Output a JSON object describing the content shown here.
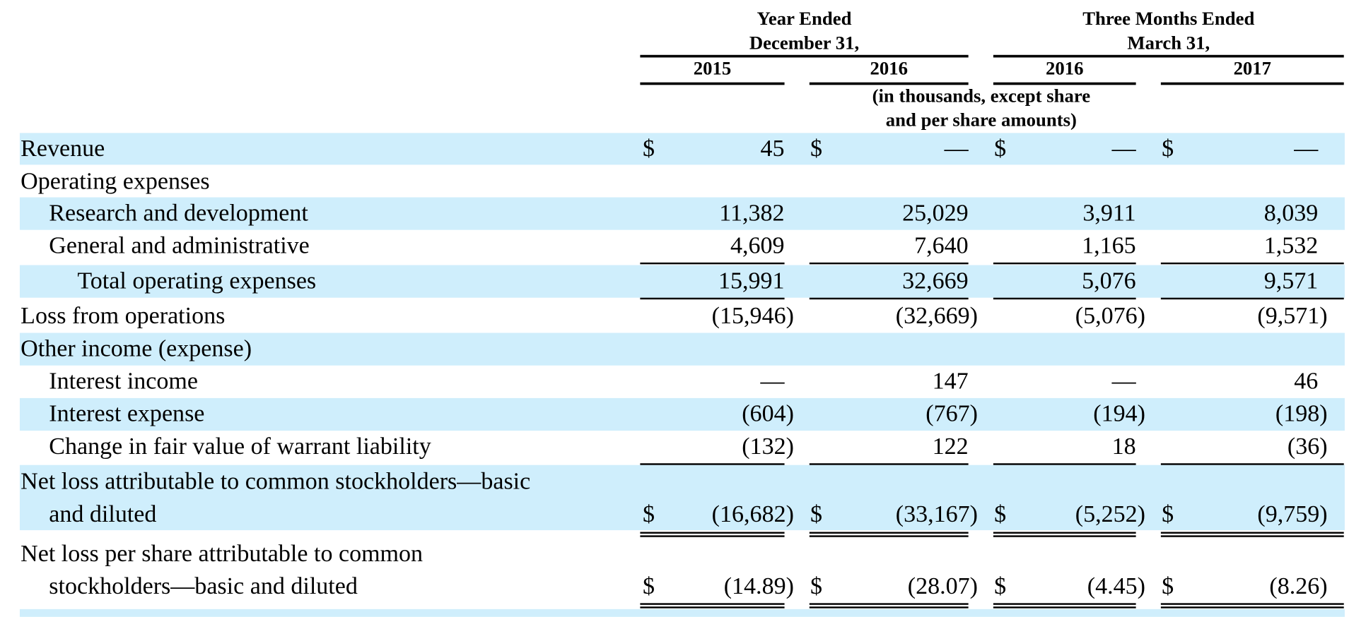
{
  "header": {
    "year_ended": [
      "Year Ended",
      "December 31,"
    ],
    "three_months": [
      "Three Months Ended",
      "March 31,"
    ],
    "years": [
      "2015",
      "2016",
      "2016",
      "2017"
    ],
    "units": [
      "(in thousands, except share",
      "and per share amounts)"
    ]
  },
  "currency": "$",
  "rows": {
    "revenue": {
      "label": "Revenue",
      "values": [
        "45",
        "—",
        "—",
        "—"
      ]
    },
    "opex": {
      "label": "Operating expenses"
    },
    "rd": {
      "label": "Research and development",
      "values": [
        "11,382",
        "25,029",
        "3,911",
        "8,039"
      ]
    },
    "ga": {
      "label": "General and administrative",
      "values": [
        "4,609",
        "7,640",
        "1,165",
        "1,532"
      ]
    },
    "total_opex": {
      "label": "Total operating expenses",
      "values": [
        "15,991",
        "32,669",
        "5,076",
        "9,571"
      ]
    },
    "loss_ops": {
      "label": "Loss from operations",
      "values": [
        "(15,946)",
        "(32,669)",
        "(5,076)",
        "(9,571)"
      ]
    },
    "other": {
      "label": "Other income (expense)"
    },
    "int_income": {
      "label": "Interest income",
      "values": [
        "—",
        "147",
        "—",
        "46"
      ]
    },
    "int_expense": {
      "label": "Interest expense",
      "values": [
        "(604)",
        "(767)",
        "(194)",
        "(198)"
      ]
    },
    "warrant": {
      "label": "Change in fair value of warrant liability",
      "values": [
        "(132)",
        "122",
        "18",
        "(36)"
      ]
    },
    "net_loss": {
      "label": [
        "Net loss attributable to common stockholders—basic",
        "and diluted"
      ],
      "values": [
        "(16,682)",
        "(33,167)",
        "(5,252)",
        "(9,759)"
      ]
    },
    "eps": {
      "label": [
        "Net loss per share attributable to common",
        "stockholders—basic and diluted"
      ],
      "values": [
        "(14.89)",
        "(28.07)",
        "(4.45)",
        "(8.26)"
      ]
    }
  }
}
